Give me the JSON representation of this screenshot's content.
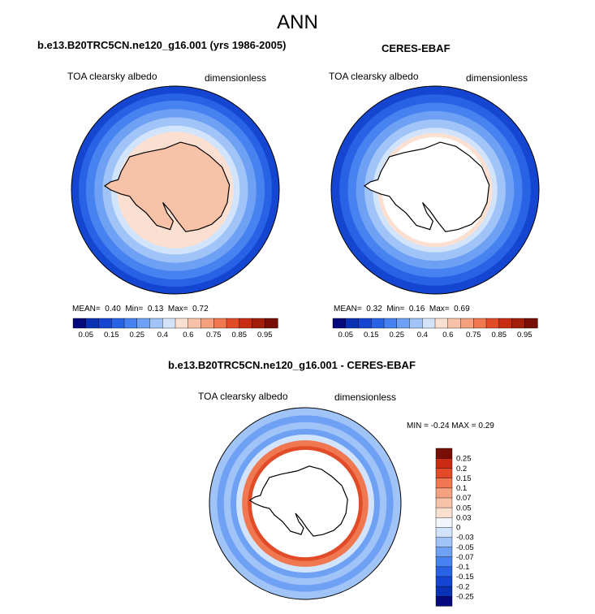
{
  "title": "ANN",
  "panels": [
    {
      "title": "b.e13.B20TRC5CN.ne120_g16.001 (yrs 1986-2005)",
      "left_label": "TOA clearsky albedo",
      "right_label": "dimensionless",
      "stats": {
        "mean": "0.40",
        "min": "0.13",
        "max": "0.72"
      },
      "stats_labels": {
        "mean": "MEAN=",
        "min": "Min=",
        "max": "Max="
      }
    },
    {
      "title": "CERES-EBAF",
      "left_label": "TOA clearsky albedo",
      "right_label": "dimensionless",
      "stats": {
        "mean": "0.32",
        "min": "0.16",
        "max": "0.69"
      },
      "stats_labels": {
        "mean": "MEAN=",
        "min": "Min=",
        "max": "Max="
      }
    },
    {
      "title": "b.e13.B20TRC5CN.ne120_g16.001 - CERES-EBAF",
      "left_label": "TOA clearsky albedo",
      "right_label": "dimensionless",
      "stats_text": "MIN =  -0.24 MAX =   0.29"
    }
  ],
  "chart_data": [
    {
      "type": "heatmap",
      "projection": "south polar stereographic",
      "title": "b.e13.B20TRC5CN.ne120_g16.001 (yrs 1986-2005)",
      "variable": "TOA clearsky albedo",
      "units": "dimensionless",
      "mean": 0.4,
      "min": 0.13,
      "max": 0.72,
      "colorbar": {
        "levels": [
          0.05,
          0.1,
          0.15,
          0.2,
          0.25,
          0.3,
          0.4,
          0.5,
          0.6,
          0.7,
          0.75,
          0.8,
          0.85,
          0.9,
          0.95
        ],
        "tick_labels": [
          "0.05",
          "0.15",
          "0.25",
          "0.4",
          "0.6",
          "0.75",
          "0.85",
          "0.95"
        ],
        "colors": [
          "#050b7d",
          "#0a32b4",
          "#1446d2",
          "#2863e6",
          "#4682f0",
          "#6ea0f4",
          "#a0c3f8",
          "#d2e4fb",
          "#fbe0d2",
          "#f8c2a8",
          "#f5a07e",
          "#f07850",
          "#e14b28",
          "#c82d14",
          "#a01e0a",
          "#780f05"
        ]
      }
    },
    {
      "type": "heatmap",
      "projection": "south polar stereographic",
      "title": "CERES-EBAF",
      "variable": "TOA clearsky albedo",
      "units": "dimensionless",
      "mean": 0.32,
      "min": 0.16,
      "max": 0.69,
      "colorbar": {
        "levels": [
          0.05,
          0.1,
          0.15,
          0.2,
          0.25,
          0.3,
          0.4,
          0.5,
          0.6,
          0.7,
          0.75,
          0.8,
          0.85,
          0.9,
          0.95
        ],
        "tick_labels": [
          "0.05",
          "0.15",
          "0.25",
          "0.4",
          "0.6",
          "0.75",
          "0.85",
          "0.95"
        ],
        "colors": [
          "#050b7d",
          "#0a32b4",
          "#1446d2",
          "#2863e6",
          "#4682f0",
          "#6ea0f4",
          "#a0c3f8",
          "#d2e4fb",
          "#fbe0d2",
          "#f8c2a8",
          "#f5a07e",
          "#f07850",
          "#e14b28",
          "#c82d14",
          "#a01e0a",
          "#780f05"
        ]
      }
    },
    {
      "type": "heatmap",
      "projection": "south polar stereographic",
      "title": "b.e13.B20TRC5CN.ne120_g16.001 - CERES-EBAF",
      "variable": "TOA clearsky albedo",
      "units": "dimensionless",
      "min": -0.24,
      "max": 0.29,
      "colorbar": {
        "orientation": "vertical",
        "levels": [
          -0.25,
          -0.2,
          -0.15,
          -0.1,
          -0.07,
          -0.05,
          -0.03,
          0,
          0.03,
          0.05,
          0.07,
          0.1,
          0.15,
          0.2,
          0.25
        ],
        "tick_labels": [
          "-0.25",
          "-0.2",
          "-0.15",
          "-0.1",
          "-0.07",
          "-0.05",
          "-0.03",
          "0",
          "0.03",
          "0.05",
          "0.07",
          "0.1",
          "0.15",
          "0.2",
          "0.25"
        ],
        "colors": [
          "#050b7d",
          "#0a32b4",
          "#1446d2",
          "#2863e6",
          "#4682f0",
          "#6ea0f4",
          "#a0c3f8",
          "#d2e4fb",
          "#f2f5fa",
          "#fbe0d2",
          "#f8c2a8",
          "#f5a07e",
          "#f07850",
          "#e14b28",
          "#c82d14",
          "#780f05"
        ]
      }
    }
  ]
}
